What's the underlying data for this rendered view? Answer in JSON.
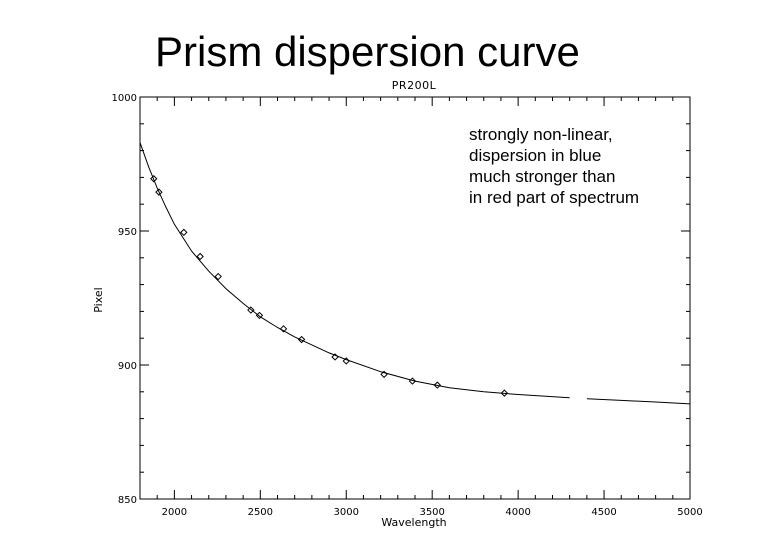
{
  "slide": {
    "title": "Prism dispersion curve",
    "annotation_lines": [
      "strongly non-linear,",
      "dispersion in blue",
      "much stronger than",
      "in red part of spectrum"
    ]
  },
  "chart_data": {
    "type": "scatter",
    "title": "PR200L",
    "xlabel": "Wavelength",
    "ylabel": "Pixel",
    "xlim": [
      1800,
      5000
    ],
    "ylim": [
      850,
      1000
    ],
    "xticks": [
      2000,
      2500,
      3000,
      3500,
      4000,
      4500,
      5000
    ],
    "yticks": [
      850,
      900,
      950,
      1000
    ],
    "series": [
      {
        "kind": "points",
        "marker": "diamond",
        "x": [
          1880,
          1910,
          2055,
          2150,
          2255,
          2445,
          2495,
          2635,
          2740,
          2935,
          3000,
          3220,
          3385,
          3530,
          3920
        ],
        "y": [
          969.5,
          964.5,
          949.5,
          940.5,
          933,
          920.5,
          918.5,
          913.5,
          909.5,
          903,
          901.5,
          896.5,
          894,
          892.5,
          889.5
        ]
      },
      {
        "kind": "line",
        "x": [
          1800,
          1850,
          1900,
          1950,
          2000,
          2100,
          2200,
          2300,
          2400,
          2500,
          2600,
          2700,
          2800,
          2900,
          3000,
          3200,
          3400,
          3600,
          3800,
          4000,
          4300
        ],
        "y": [
          983,
          974,
          966,
          959,
          952.5,
          942.5,
          935,
          928.5,
          923,
          918,
          914,
          910.5,
          907.5,
          904.5,
          902,
          897.5,
          894,
          891.5,
          890,
          889,
          887.8
        ]
      },
      {
        "kind": "line",
        "x": [
          4400,
          4600,
          4800,
          5000
        ],
        "y": [
          887.4,
          886.8,
          886.2,
          885.5
        ]
      }
    ]
  }
}
